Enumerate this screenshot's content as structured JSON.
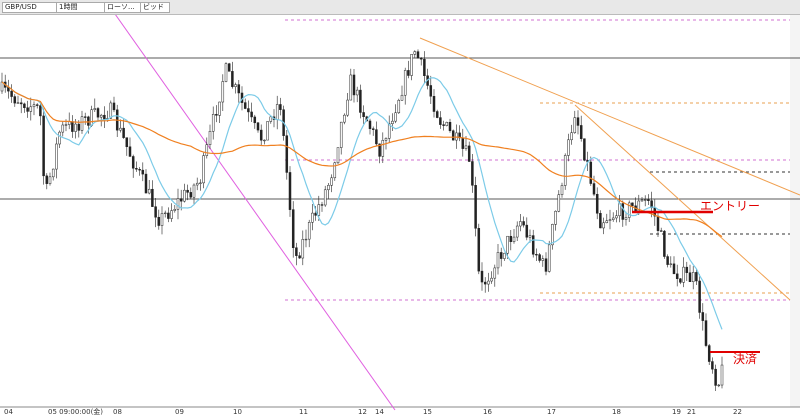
{
  "toolbar": {
    "symbol": "GBP/USD",
    "timeframe": "1時間",
    "chart_type": "ローソ...",
    "price_type": "ビッド"
  },
  "x_axis": {
    "labels": [
      "04",
      "05 09:00:00(金)",
      "08",
      "09",
      "10",
      "11",
      "12",
      "14",
      "15",
      "16",
      "17",
      "18",
      "19",
      "21",
      "22"
    ]
  },
  "annotations": {
    "entry": "エントリー",
    "exit": "決済"
  }
}
